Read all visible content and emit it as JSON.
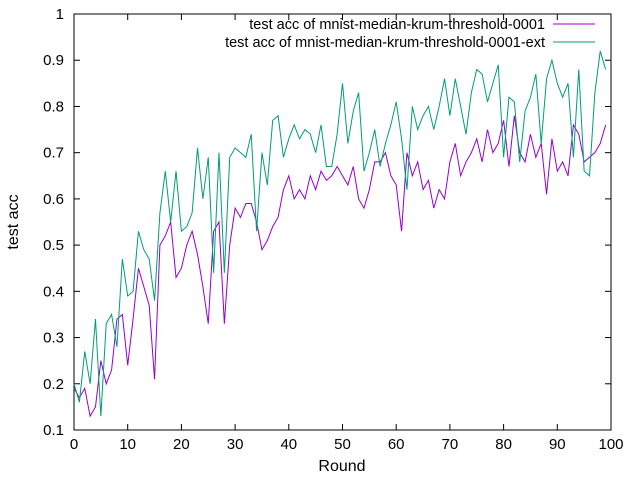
{
  "chart_data": {
    "type": "line",
    "title": "",
    "xlabel": "Round",
    "ylabel": "test acc",
    "xlim": [
      0,
      100
    ],
    "ylim": [
      0.1,
      1.0
    ],
    "xticks": [
      "0",
      "10",
      "20",
      "30",
      "40",
      "50",
      "60",
      "70",
      "80",
      "90",
      "100"
    ],
    "yticks": [
      "0.1",
      "0.2",
      "0.3",
      "0.4",
      "0.5",
      "0.6",
      "0.7",
      "0.8",
      "0.9",
      "1"
    ],
    "grid": false,
    "legend_position": "top-right",
    "series": [
      {
        "name": "test acc of mnist-median-krum-threshold-0001",
        "color": "#9400d3",
        "x": [
          0,
          1,
          2,
          3,
          4,
          5,
          6,
          7,
          8,
          9,
          10,
          11,
          12,
          13,
          14,
          15,
          16,
          17,
          18,
          19,
          20,
          21,
          22,
          23,
          24,
          25,
          26,
          27,
          28,
          29,
          30,
          31,
          32,
          33,
          34,
          35,
          36,
          37,
          38,
          39,
          40,
          41,
          42,
          43,
          44,
          45,
          46,
          47,
          48,
          49,
          50,
          51,
          52,
          53,
          54,
          55,
          56,
          57,
          58,
          59,
          60,
          61,
          62,
          63,
          64,
          65,
          66,
          67,
          68,
          69,
          70,
          71,
          72,
          73,
          74,
          75,
          76,
          77,
          78,
          79,
          80,
          81,
          82,
          83,
          84,
          85,
          86,
          87,
          88,
          89,
          90,
          91,
          92,
          93,
          94,
          95,
          96,
          97,
          98,
          99
        ],
        "values": [
          0.19,
          0.17,
          0.19,
          0.13,
          0.15,
          0.25,
          0.2,
          0.23,
          0.34,
          0.35,
          0.24,
          0.34,
          0.45,
          0.41,
          0.37,
          0.21,
          0.5,
          0.52,
          0.55,
          0.43,
          0.45,
          0.5,
          0.53,
          0.48,
          0.41,
          0.33,
          0.53,
          0.55,
          0.33,
          0.5,
          0.58,
          0.56,
          0.59,
          0.59,
          0.55,
          0.49,
          0.51,
          0.54,
          0.56,
          0.62,
          0.65,
          0.6,
          0.62,
          0.6,
          0.65,
          0.62,
          0.66,
          0.64,
          0.65,
          0.67,
          0.65,
          0.63,
          0.67,
          0.6,
          0.58,
          0.62,
          0.68,
          0.68,
          0.7,
          0.65,
          0.63,
          0.53,
          0.7,
          0.65,
          0.68,
          0.62,
          0.64,
          0.58,
          0.62,
          0.6,
          0.68,
          0.72,
          0.65,
          0.68,
          0.7,
          0.73,
          0.68,
          0.75,
          0.7,
          0.72,
          0.77,
          0.67,
          0.78,
          0.7,
          0.68,
          0.74,
          0.69,
          0.72,
          0.61,
          0.73,
          0.66,
          0.68,
          0.65,
          0.76,
          0.74,
          0.68,
          0.69,
          0.7,
          0.72,
          0.76
        ]
      },
      {
        "name": "test acc of mnist-median-krum-threshold-0001-ext",
        "color": "#009e73",
        "x": [
          0,
          1,
          2,
          3,
          4,
          5,
          6,
          7,
          8,
          9,
          10,
          11,
          12,
          13,
          14,
          15,
          16,
          17,
          18,
          19,
          20,
          21,
          22,
          23,
          24,
          25,
          26,
          27,
          28,
          29,
          30,
          31,
          32,
          33,
          34,
          35,
          36,
          37,
          38,
          39,
          40,
          41,
          42,
          43,
          44,
          45,
          46,
          47,
          48,
          49,
          50,
          51,
          52,
          53,
          54,
          55,
          56,
          57,
          58,
          59,
          60,
          61,
          62,
          63,
          64,
          65,
          66,
          67,
          68,
          69,
          70,
          71,
          72,
          73,
          74,
          75,
          76,
          77,
          78,
          79,
          80,
          81,
          82,
          83,
          84,
          85,
          86,
          87,
          88,
          89,
          90,
          91,
          92,
          93,
          94,
          95,
          96,
          97,
          98,
          99
        ],
        "values": [
          0.2,
          0.16,
          0.27,
          0.2,
          0.34,
          0.13,
          0.33,
          0.35,
          0.28,
          0.47,
          0.39,
          0.4,
          0.53,
          0.49,
          0.47,
          0.38,
          0.57,
          0.66,
          0.55,
          0.66,
          0.53,
          0.54,
          0.57,
          0.71,
          0.6,
          0.69,
          0.44,
          0.7,
          0.44,
          0.69,
          0.71,
          0.7,
          0.69,
          0.74,
          0.53,
          0.7,
          0.63,
          0.77,
          0.78,
          0.69,
          0.73,
          0.76,
          0.73,
          0.75,
          0.74,
          0.7,
          0.76,
          0.67,
          0.67,
          0.74,
          0.85,
          0.72,
          0.79,
          0.83,
          0.66,
          0.7,
          0.75,
          0.67,
          0.72,
          0.76,
          0.81,
          0.73,
          0.62,
          0.8,
          0.75,
          0.78,
          0.8,
          0.75,
          0.8,
          0.86,
          0.78,
          0.86,
          0.8,
          0.74,
          0.83,
          0.88,
          0.87,
          0.81,
          0.85,
          0.89,
          0.69,
          0.82,
          0.81,
          0.68,
          0.79,
          0.82,
          0.87,
          0.72,
          0.86,
          0.9,
          0.85,
          0.82,
          0.85,
          0.69,
          0.88,
          0.66,
          0.65,
          0.83,
          0.92,
          0.88
        ]
      }
    ]
  }
}
